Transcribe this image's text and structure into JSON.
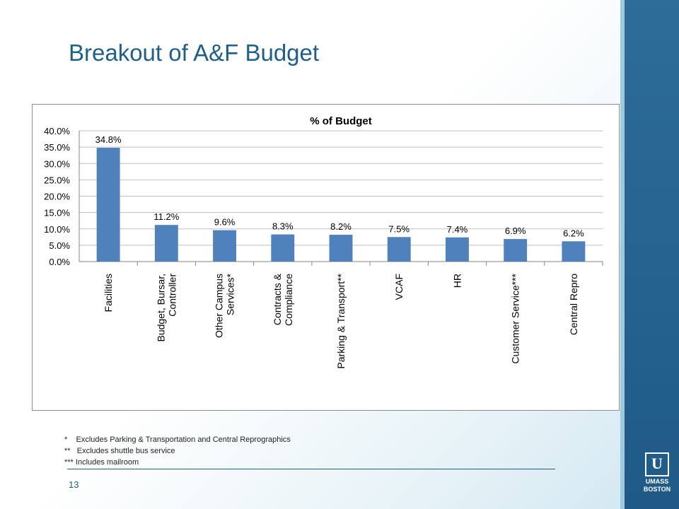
{
  "slide": {
    "title": "Breakout of A&F Budget",
    "page_number": "13",
    "footnotes": [
      "*    Excludes Parking & Transportation and Central Reprographics",
      "**   Excludes shuttle bus service",
      "*** Includes mailroom"
    ],
    "logo": {
      "line1": "UMASS",
      "line2": "BOSTON",
      "icon": "umass-boston-logo-icon"
    },
    "colors": {
      "title": "#1f5f8b",
      "bar": "#4f81bd",
      "band": "#2e6d98"
    }
  },
  "chart_data": {
    "type": "bar",
    "title": "% of Budget",
    "categories": [
      [
        "Facilities"
      ],
      [
        "Budget, Bursar,",
        "Controller"
      ],
      [
        "Other Campus",
        "Services*"
      ],
      [
        "Contracts &",
        "Compliance"
      ],
      [
        "Parking & Transport**"
      ],
      [
        "VCAF"
      ],
      [
        "HR"
      ],
      [
        "Customer Service***"
      ],
      [
        "Central Repro"
      ]
    ],
    "values": [
      34.8,
      11.2,
      9.6,
      8.3,
      8.2,
      7.5,
      7.4,
      6.9,
      6.2
    ],
    "data_labels": [
      "34.8%",
      "11.2%",
      "9.6%",
      "8.3%",
      "8.2%",
      "7.5%",
      "7.4%",
      "6.9%",
      "6.2%"
    ],
    "ylim": [
      0,
      40
    ],
    "yticks": [
      "0.0%",
      "5.0%",
      "10.0%",
      "15.0%",
      "20.0%",
      "25.0%",
      "30.0%",
      "35.0%",
      "40.0%"
    ],
    "grid": true,
    "legend": "none"
  }
}
